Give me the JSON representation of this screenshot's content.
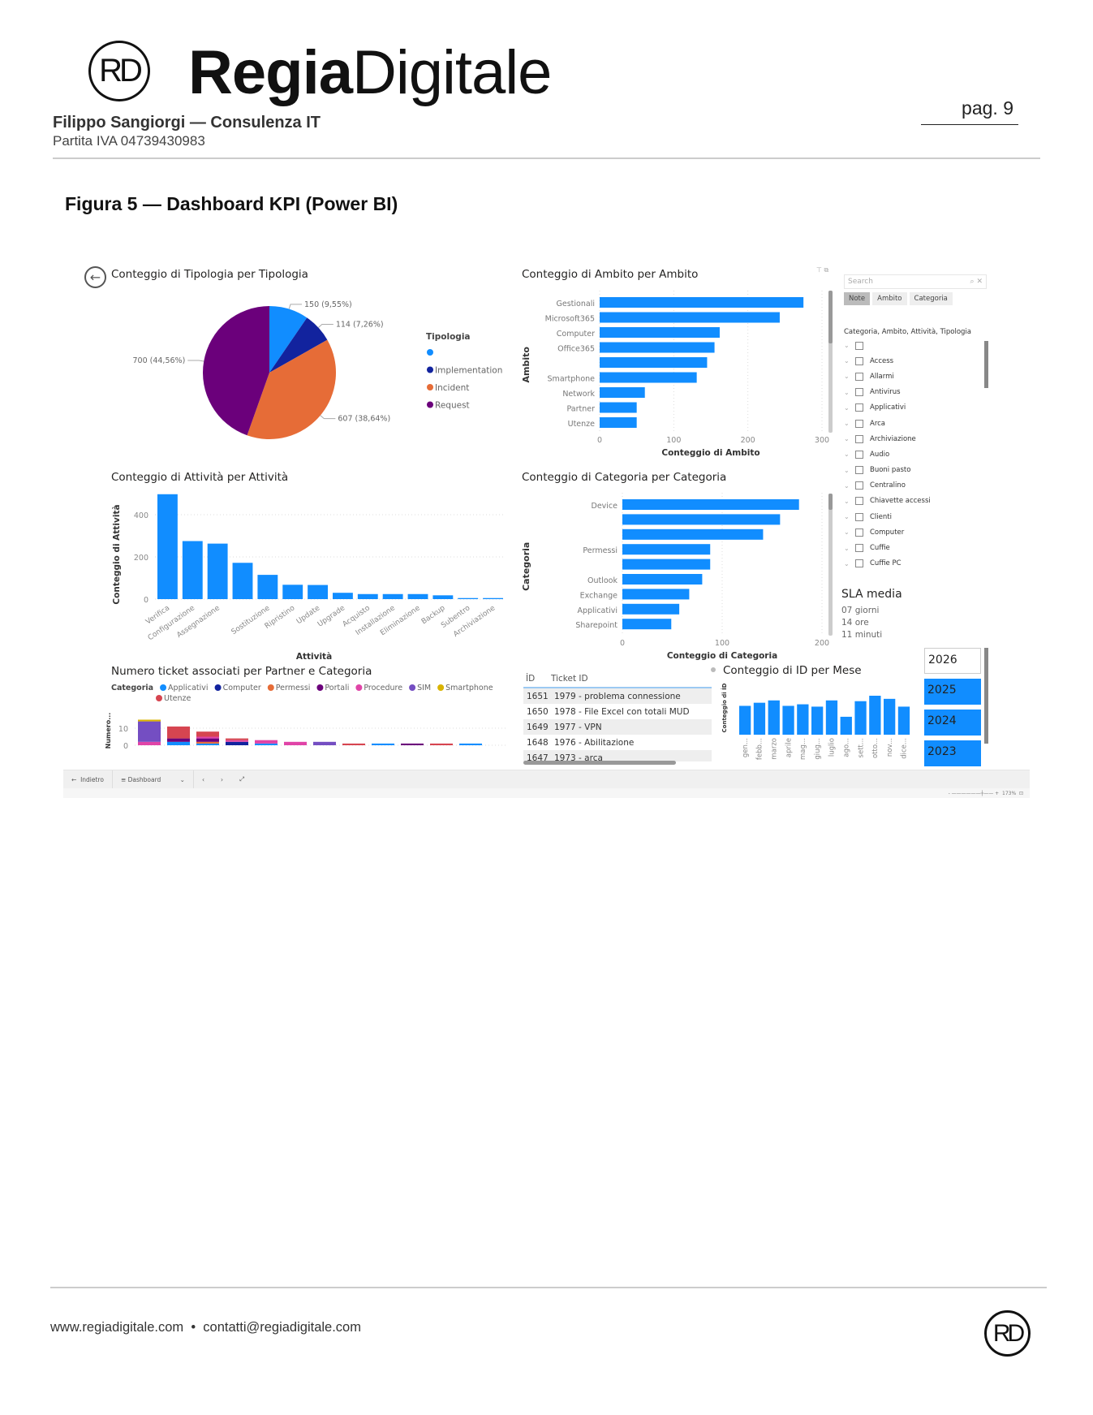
{
  "header": {
    "logo_text": "RD",
    "brand_bold": "Regia",
    "brand_light": "Digitale",
    "owner": "Filippo Sangiorgi — Consulenza IT",
    "piva": "Partita IVA 04739430983",
    "page": "pag. 9"
  },
  "figure_title": "Figura 5 — Dashboard KPI (Power BI)",
  "footer": {
    "website": "www.regiadigitale.com",
    "separator": "•",
    "email": "contatti@regiadigitale.com",
    "logo_text": "RD"
  },
  "colors": {
    "accent": "#118DFF",
    "Applicativi": "#118DFF",
    "Computer": "#12239E",
    "Permessi": "#E66C37",
    "Portali": "#6B007B",
    "Procedure": "#E044A7",
    "SIM": "#744EC2",
    "Smartphone": "#D9B300",
    "Utenze": "#D64550"
  },
  "chart_data": [
    {
      "id": "pie",
      "type": "pie",
      "title": "Conteggio di Tipologia per Tipologia",
      "legend_title": "Tipologia",
      "legend": "right",
      "slices": [
        {
          "name": "",
          "value": 150,
          "label": "150 (9,55%)",
          "color": "#118DFF"
        },
        {
          "name": "Implementation",
          "value": 114,
          "label": "114 (7,26%)",
          "color": "#12239E"
        },
        {
          "name": "Incident",
          "value": 607,
          "label": "607 (38,64%)",
          "color": "#E66C37"
        },
        {
          "name": "Request",
          "value": 700,
          "label": "700 (44,56%)",
          "color": "#6B007B"
        }
      ]
    },
    {
      "id": "ambito",
      "type": "bar",
      "orientation": "horizontal",
      "title": "Conteggio di Ambito per Ambito",
      "xlabel": "Conteggio di Ambito",
      "ylabel": "Ambito",
      "xlim": [
        0,
        300
      ],
      "xticks": [
        "0",
        "100",
        "200",
        "300"
      ],
      "grid": true,
      "categories": [
        "Gestionali",
        "Microsoft365",
        "Computer",
        "Office365",
        "",
        "Smartphone",
        "Network",
        "Partner",
        "Utenze"
      ],
      "values": [
        275,
        243,
        162,
        155,
        145,
        131,
        61,
        50,
        50
      ]
    },
    {
      "id": "attivita",
      "type": "bar",
      "title": "Conteggio di Attività per Attività",
      "xlabel": "Attività",
      "ylabel": "Conteggio di Attività",
      "ylim": [
        0,
        500
      ],
      "yticks": [
        "0",
        "200",
        "400"
      ],
      "grid": true,
      "categories": [
        "Verifica",
        "Configurazione",
        "Assegnazione",
        "",
        "Sostituzione",
        "Ripristino",
        "Update",
        "Upgrade",
        "Acquisto",
        "Installazione",
        "Eliminazione",
        "Backup",
        "Subentro",
        "Archiviazione"
      ],
      "values": [
        497,
        275,
        263,
        172,
        115,
        68,
        67,
        30,
        24,
        24,
        24,
        18,
        5,
        5
      ]
    },
    {
      "id": "categoria",
      "type": "bar",
      "orientation": "horizontal",
      "title": "Conteggio di Categoria per Categoria",
      "xlabel": "Conteggio di Categoria",
      "ylabel": "Categoria",
      "xlim": [
        0,
        200
      ],
      "xticks": [
        "0",
        "100",
        "200"
      ],
      "grid": true,
      "categories": [
        "Device",
        "",
        "",
        "Permessi",
        "",
        "Outlook",
        "Exchange",
        "Applicativi",
        "Sharepoint"
      ],
      "values": [
        177,
        158,
        141,
        88,
        88,
        80,
        67,
        57,
        49
      ]
    },
    {
      "id": "partner",
      "type": "bar",
      "stacked": true,
      "title": "Numero ticket associati per Partner e Categoria",
      "ylabel": "Numero...",
      "legend_title": "Categoria",
      "legend": "top",
      "yticks": [
        "0",
        "10"
      ],
      "ylim": [
        0,
        15
      ],
      "grid": true,
      "categories": [
        "",
        "",
        "",
        "",
        "",
        "",
        "",
        "",
        "",
        "",
        "",
        ""
      ],
      "series": [
        {
          "name": "Applicativi",
          "values": [
            0,
            2,
            1,
            0,
            1,
            0,
            0,
            0,
            1,
            0,
            0,
            1
          ]
        },
        {
          "name": "Computer",
          "values": [
            0,
            0,
            0,
            2,
            0,
            0,
            0,
            0,
            0,
            0,
            0,
            0
          ]
        },
        {
          "name": "Permessi",
          "values": [
            0,
            0,
            1,
            0,
            0,
            0,
            0,
            0,
            0,
            0,
            0,
            0
          ]
        },
        {
          "name": "Portali",
          "values": [
            0,
            2,
            2,
            0,
            0,
            0,
            0,
            0,
            0,
            1,
            0,
            0
          ]
        },
        {
          "name": "Procedure",
          "values": [
            2,
            0,
            1,
            1,
            2,
            2,
            0,
            0,
            0,
            0,
            0,
            0
          ]
        },
        {
          "name": "SIM",
          "values": [
            12,
            0,
            0,
            0,
            0,
            0,
            2,
            0,
            0,
            0,
            0,
            0
          ]
        },
        {
          "name": "Smartphone",
          "values": [
            1,
            0,
            0,
            0,
            0,
            0,
            0,
            0,
            0,
            0,
            0,
            0
          ]
        },
        {
          "name": "Utenze",
          "values": [
            0,
            7,
            3,
            1,
            0,
            0,
            0,
            1,
            0,
            0,
            1,
            0
          ]
        }
      ]
    },
    {
      "id": "mese",
      "type": "bar",
      "title": "Conteggio di İD per Mese",
      "ylabel": "Conteggio di İD",
      "grid": false,
      "categories": [
        "gen...",
        "febb...",
        "marzo",
        "aprile",
        "mag...",
        "giug...",
        "luglio",
        "ago...",
        "sett...",
        "otto...",
        "nov...",
        "dice..."
      ],
      "values": [
        37,
        41,
        44,
        37,
        39,
        36,
        44,
        23,
        43,
        50,
        46,
        36
      ]
    }
  ],
  "slicer": {
    "search_placeholder": "Search",
    "tabs": [
      {
        "label": "Note",
        "active": true
      },
      {
        "label": "Ambito",
        "active": false
      },
      {
        "label": "Categoria",
        "active": false
      }
    ],
    "header": "Categoria, Ambito, Attività, Tipologia",
    "items": [
      "",
      "Access",
      "Allarmi",
      "Antivirus",
      "Applicativi",
      "Arca",
      "Archiviazione",
      "Audio",
      "Buoni pasto",
      "Centralino",
      "Chiavette accessi",
      "Clienti",
      "Computer",
      "Cuffie",
      "Cuffie PC"
    ]
  },
  "sla": {
    "title": "SLA media",
    "days": "07 giorni",
    "hours": "14 ore",
    "minutes": "11 minuti"
  },
  "table": {
    "columns": [
      "İD",
      "Ticket ID"
    ],
    "rows": [
      [
        "1651",
        "1979 - problema connessione"
      ],
      [
        "1650",
        "1978 - File Excel con totali MUD"
      ],
      [
        "1649",
        "1977 - VPN"
      ],
      [
        "1648",
        "1976 - Abilitazione"
      ],
      [
        "1647",
        "1973 - arca"
      ]
    ]
  },
  "years": [
    {
      "label": "2026",
      "selected": false
    },
    {
      "label": "2025",
      "selected": true
    },
    {
      "label": "2024",
      "selected": true
    },
    {
      "label": "2023",
      "selected": true
    }
  ],
  "bottom_bar": {
    "back": "Indietro",
    "page_select": "Dashboard",
    "zoom": "173%"
  }
}
